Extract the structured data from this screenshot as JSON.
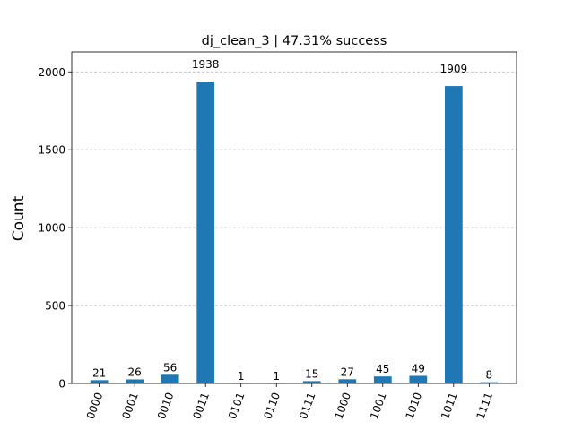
{
  "chart_data": {
    "type": "bar",
    "title": "dj_clean_3 | 47.31% success",
    "xlabel": "",
    "ylabel": "Count",
    "categories": [
      "0000",
      "0001",
      "0010",
      "0011",
      "0101",
      "0110",
      "0111",
      "1000",
      "1001",
      "1010",
      "1011",
      "1111"
    ],
    "values": [
      21,
      26,
      56,
      1938,
      1,
      1,
      15,
      27,
      45,
      49,
      1909,
      8
    ],
    "ylim": [
      0,
      2128
    ],
    "yticks": [
      0,
      500,
      1000,
      1500,
      2000
    ],
    "grid": "y-dashed",
    "bar_color": "#1f77b4",
    "legend": "none"
  }
}
